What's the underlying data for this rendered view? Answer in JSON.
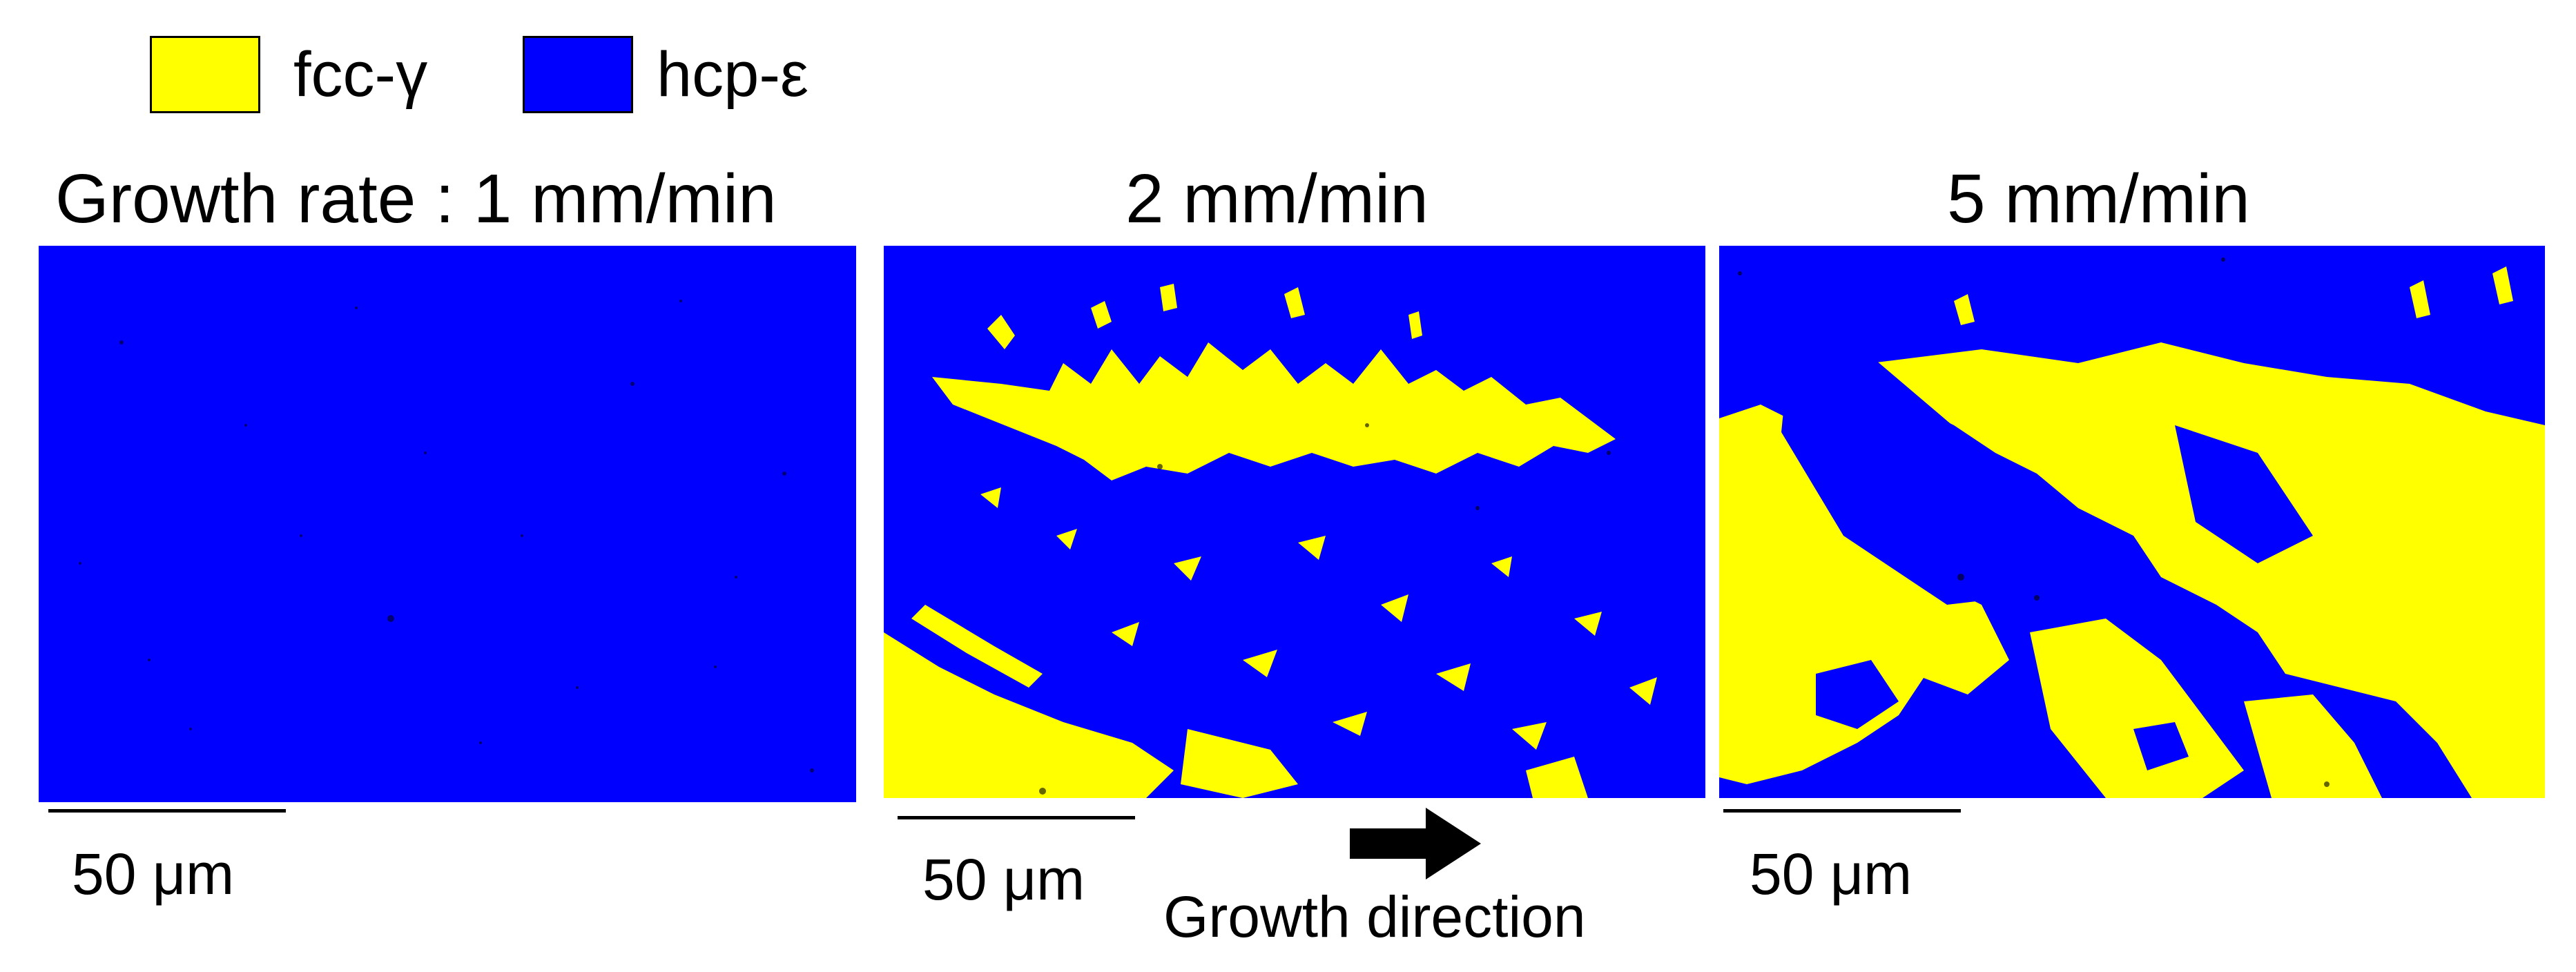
{
  "legend": {
    "items": [
      {
        "label": "fcc-γ",
        "color": "#ffff00"
      },
      {
        "label": "hcp-ε",
        "color": "#0000ff"
      }
    ]
  },
  "panels": [
    {
      "title": "Growth rate : 1 mm/min",
      "scale_label": "50 μm"
    },
    {
      "title": "2 mm/min",
      "scale_label": "50 μm"
    },
    {
      "title": "5 mm/min",
      "scale_label": "50 μm"
    }
  ],
  "growth_direction": {
    "label": "Growth direction",
    "icon": "arrow-right-icon"
  },
  "colors": {
    "fcc": "#ffff00",
    "hcp": "#0000ff",
    "boundary": "#000000"
  }
}
